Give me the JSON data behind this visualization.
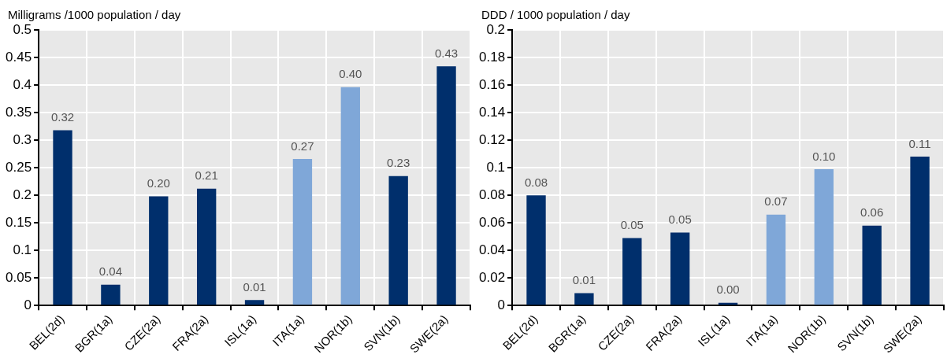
{
  "chart_data": [
    {
      "type": "bar",
      "ylabel": "Milligrams /1000 population / day",
      "categories": [
        "BEL(2d)",
        "BGR(1a)",
        "CZE(2a)",
        "FRA(2a)",
        "ISL(1a)",
        "ITA(1a)",
        "NOR(1b)",
        "SVN(1b)",
        "SWE(2a)"
      ],
      "values": [
        0.318,
        0.038,
        0.198,
        0.212,
        0.01,
        0.266,
        0.396,
        0.235,
        0.434
      ],
      "value_labels": [
        "0.32",
        "0.04",
        "0.20",
        "0.21",
        "0.01",
        "0.27",
        "0.40",
        "0.23",
        "0.43"
      ],
      "colors": [
        "#002f6c",
        "#002f6c",
        "#002f6c",
        "#002f6c",
        "#002f6c",
        "#7fa7d8",
        "#7fa7d8",
        "#002f6c",
        "#002f6c"
      ],
      "ylim": [
        0,
        0.5
      ],
      "yticks": [
        0,
        0.05,
        0.1,
        0.15,
        0.2,
        0.25,
        0.3,
        0.35,
        0.4,
        0.45,
        0.5
      ],
      "grid": true,
      "legend": false
    },
    {
      "type": "bar",
      "ylabel": "DDD / 1000 population / day",
      "categories": [
        "BEL(2d)",
        "BGR(1a)",
        "CZE(2a)",
        "FRA(2a)",
        "ISL(1a)",
        "ITA(1a)",
        "NOR(1b)",
        "SVN(1b)",
        "SWE(2a)"
      ],
      "values": [
        0.08,
        0.009,
        0.049,
        0.053,
        0.002,
        0.066,
        0.099,
        0.058,
        0.108
      ],
      "value_labels": [
        "0.08",
        "0.01",
        "0.05",
        "0.05",
        "0.00",
        "0.07",
        "0.10",
        "0.06",
        "0.11"
      ],
      "colors": [
        "#002f6c",
        "#002f6c",
        "#002f6c",
        "#002f6c",
        "#002f6c",
        "#7fa7d8",
        "#7fa7d8",
        "#002f6c",
        "#002f6c"
      ],
      "ylim": [
        0,
        0.2
      ],
      "yticks": [
        0,
        0.02,
        0.04,
        0.06,
        0.08,
        0.1,
        0.12,
        0.14,
        0.16,
        0.18,
        0.2
      ],
      "grid": true,
      "legend": false
    }
  ]
}
